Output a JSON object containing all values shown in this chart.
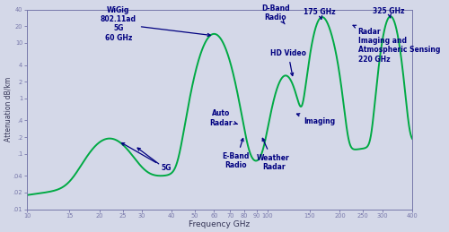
{
  "xlabel": "Frequency GHz",
  "ylabel": "Attenuation dB/km",
  "bg_color": "#d4d8e8",
  "line_color": "#00aa44",
  "axis_color": "#7777aa",
  "text_color": "#000080",
  "ytick_vals": [
    0.01,
    0.02,
    0.04,
    0.1,
    0.2,
    0.4,
    1,
    2,
    4,
    10,
    20,
    40
  ],
  "ytick_labels": [
    ".01",
    ".02",
    ".04",
    ".1",
    ".2",
    ".4",
    "1",
    "2",
    "4",
    "10",
    "20",
    "40"
  ],
  "xtick_vals": [
    10,
    15,
    20,
    25,
    30,
    40,
    50,
    60,
    70,
    80,
    90,
    100,
    150,
    200,
    250,
    300,
    400
  ],
  "xlim": [
    10,
    400
  ],
  "ylim": [
    0.01,
    40
  ]
}
